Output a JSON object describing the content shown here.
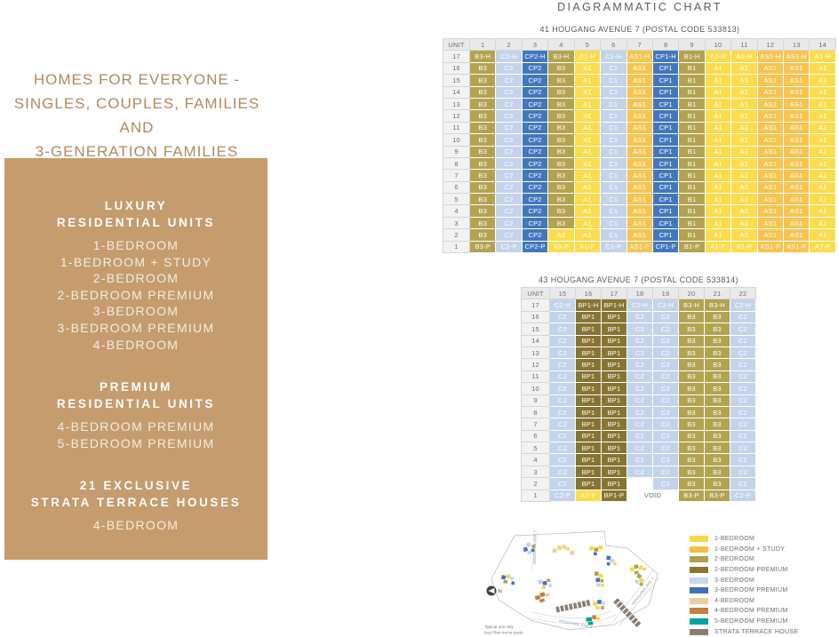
{
  "page": {
    "title": "DIAGRAMMATIC CHART"
  },
  "left_panel": {
    "heading_lines": [
      "HOMES FOR EVERYONE -",
      "SINGLES, COUPLES, FAMILIES AND",
      "3-GENERATION FAMILIES"
    ],
    "box_bg_color": "#C49C6E",
    "heading_color": "#B1895C",
    "sections": [
      {
        "title_lines": [
          "LUXURY",
          "RESIDENTIAL UNITS"
        ],
        "items": [
          "1-BEDROOM",
          "1-BEDROOM + STUDY",
          "2-BEDROOM",
          "2-BEDROOM PREMIUM",
          "3-BEDROOM",
          "3-BEDROOM PREMIUM",
          "4-BEDROOM"
        ]
      },
      {
        "title_lines": [
          "PREMIUM",
          "RESIDENTIAL UNITS"
        ],
        "items": [
          "4-BEDROOM PREMIUM",
          "5-BEDROOM PREMIUM"
        ]
      },
      {
        "title_lines": [
          "21 EXCLUSIVE",
          "STRATA TERRACE HOUSES"
        ],
        "items": [
          "4-BEDROOM"
        ]
      }
    ]
  },
  "unit_type_colors": {
    "A": "#FCDC4C",
    "AS": "#F6C44F",
    "B": "#B3A351",
    "BP": "#877431",
    "C": "#C4D3EC",
    "CP": "#4377BD"
  },
  "blocks": [
    {
      "title": "41 HOUGANG AVENUE 7 (POSTAL CODE 533813)",
      "columns": [
        "UNIT",
        "1",
        "2",
        "3",
        "4",
        "5",
        "6",
        "7",
        "8",
        "9",
        "10",
        "11",
        "12",
        "13",
        "14"
      ],
      "floors": [
        {
          "floor": "17",
          "cells": [
            "B3-H",
            "C2-H",
            "CP2-H",
            "B3-H",
            "A1-H",
            "C1-H",
            "AS1-H",
            "CP1-H",
            "B1-H",
            "A1-H",
            "A1-H",
            "AS1-H",
            "AS1-H",
            "A1-H"
          ]
        },
        {
          "floor": "16",
          "cells": [
            "B3",
            "C2",
            "CP2",
            "B3",
            "A1",
            "C1",
            "AS1",
            "CP1",
            "B1",
            "A1",
            "A1",
            "AS1",
            "AS1",
            "A1"
          ]
        },
        {
          "floor": "15",
          "cells": [
            "B3",
            "C2",
            "CP2",
            "B3",
            "A1",
            "C1",
            "AS1",
            "CP1",
            "B1",
            "A1",
            "A1",
            "AS1",
            "AS1",
            "A1"
          ]
        },
        {
          "floor": "14",
          "cells": [
            "B3",
            "C2",
            "CP2",
            "B3",
            "A1",
            "C1",
            "AS1",
            "CP1",
            "B1",
            "A1",
            "A1",
            "AS1",
            "AS1",
            "A1"
          ]
        },
        {
          "floor": "13",
          "cells": [
            "B3",
            "C2",
            "CP2",
            "B3",
            "A1",
            "C1",
            "AS1",
            "CP1",
            "B1",
            "A1",
            "A1",
            "AS1",
            "AS1",
            "A1"
          ]
        },
        {
          "floor": "12",
          "cells": [
            "B3",
            "C2",
            "CP2",
            "B3",
            "A1",
            "C1",
            "AS1",
            "CP1",
            "B1",
            "A1",
            "A1",
            "AS1",
            "AS1",
            "A1"
          ]
        },
        {
          "floor": "11",
          "cells": [
            "B3",
            "C2",
            "CP2",
            "B3",
            "A1",
            "C1",
            "AS1",
            "CP1",
            "B1",
            "A1",
            "A1",
            "AS1",
            "AS1",
            "A1"
          ]
        },
        {
          "floor": "10",
          "cells": [
            "B3",
            "C2",
            "CP2",
            "B3",
            "A1",
            "C1",
            "AS1",
            "CP1",
            "B1",
            "A1",
            "A1",
            "AS1",
            "AS1",
            "A1"
          ]
        },
        {
          "floor": "9",
          "cells": [
            "B3",
            "C2",
            "CP2",
            "B3",
            "A1",
            "C1",
            "AS1",
            "CP1",
            "B1",
            "A1",
            "A1",
            "AS1",
            "AS1",
            "A1"
          ]
        },
        {
          "floor": "8",
          "cells": [
            "B3",
            "C2",
            "CP2",
            "B3",
            "A1",
            "C1",
            "AS1",
            "CP1",
            "B1",
            "A1",
            "A1",
            "AS1",
            "AS1",
            "A1"
          ]
        },
        {
          "floor": "7",
          "cells": [
            "B3",
            "C2",
            "CP2",
            "B3",
            "A1",
            "C1",
            "AS1",
            "CP1",
            "B1",
            "A1",
            "A1",
            "AS1",
            "AS1",
            "A1"
          ]
        },
        {
          "floor": "6",
          "cells": [
            "B3",
            "C2",
            "CP2",
            "B3",
            "A1",
            "C1",
            "AS1",
            "CP1",
            "B1",
            "A1",
            "A1",
            "AS1",
            "AS1",
            "A1"
          ]
        },
        {
          "floor": "5",
          "cells": [
            "B3",
            "C2",
            "CP2",
            "B3",
            "A1",
            "C1",
            "AS1",
            "CP1",
            "B1",
            "A1",
            "A1",
            "AS1",
            "AS1",
            "A1"
          ]
        },
        {
          "floor": "4",
          "cells": [
            "B3",
            "C2",
            "CP2",
            "B3",
            "A1",
            "C1",
            "AS1",
            "CP1",
            "B1",
            "A1",
            "A1",
            "AS1",
            "AS1",
            "A1"
          ]
        },
        {
          "floor": "3",
          "cells": [
            "B3",
            "C2",
            "CP2",
            "B3",
            "A1",
            "C1",
            "AS1",
            "CP1",
            "B1",
            "A1",
            "A1",
            "AS1",
            "AS1",
            "A1"
          ]
        },
        {
          "floor": "2",
          "cells": [
            "B3",
            "C2",
            "CP2",
            "A2",
            "A1",
            "C1",
            "AS1",
            "CP1",
            "B1",
            "A1",
            "A1",
            "AS1",
            "AS1",
            "A1"
          ]
        },
        {
          "floor": "1",
          "cells": [
            "B3-P",
            "C2-P",
            "CP2-P",
            "A3-P",
            "A1-P",
            "C1-P",
            "AS1-P",
            "CP1-P",
            "B1-P",
            "A1-P",
            "A1-P",
            "AS1-P",
            "AS1-P",
            "A1-P"
          ]
        }
      ]
    },
    {
      "title": "43 HOUGANG AVENUE 7 (POSTAL CODE 533814)",
      "columns": [
        "UNIT",
        "15",
        "16",
        "17",
        "18",
        "19",
        "20",
        "21",
        "22"
      ],
      "floors": [
        {
          "floor": "17",
          "cells": [
            "C2-H",
            "BP1-H",
            "BP1-H",
            "C2-H",
            "C2-H",
            "B3-H",
            "B3-H",
            "C2-H"
          ]
        },
        {
          "floor": "16",
          "cells": [
            "C2",
            "BP1",
            "BP1",
            "C2",
            "C2",
            "B3",
            "B3",
            "C2"
          ]
        },
        {
          "floor": "15",
          "cells": [
            "C2",
            "BP1",
            "BP1",
            "C2",
            "C2",
            "B3",
            "B3",
            "C2"
          ]
        },
        {
          "floor": "14",
          "cells": [
            "C2",
            "BP1",
            "BP1",
            "C2",
            "C2",
            "B3",
            "B3",
            "C2"
          ]
        },
        {
          "floor": "13",
          "cells": [
            "C2",
            "BP1",
            "BP1",
            "C2",
            "C2",
            "B3",
            "B3",
            "C2"
          ]
        },
        {
          "floor": "12",
          "cells": [
            "C2",
            "BP1",
            "BP1",
            "C2",
            "C2",
            "B3",
            "B3",
            "C2"
          ]
        },
        {
          "floor": "11",
          "cells": [
            "C2",
            "BP1",
            "BP1",
            "C2",
            "C2",
            "B3",
            "B3",
            "C2"
          ]
        },
        {
          "floor": "10",
          "cells": [
            "C2",
            "BP1",
            "BP1",
            "C2",
            "C2",
            "B3",
            "B3",
            "C2"
          ]
        },
        {
          "floor": "9",
          "cells": [
            "C2",
            "BP1",
            "BP1",
            "C2",
            "C2",
            "B3",
            "B3",
            "C2"
          ]
        },
        {
          "floor": "8",
          "cells": [
            "C2",
            "BP1",
            "BP1",
            "C2",
            "C2",
            "B3",
            "B3",
            "C2"
          ]
        },
        {
          "floor": "7",
          "cells": [
            "C2",
            "BP1",
            "BP1",
            "C2",
            "C2",
            "B3",
            "B3",
            "C2"
          ]
        },
        {
          "floor": "6",
          "cells": [
            "C2",
            "BP1",
            "BP1",
            "C2",
            "C2",
            "B3",
            "B3",
            "C2"
          ]
        },
        {
          "floor": "5",
          "cells": [
            "C2",
            "BP1",
            "BP1",
            "C2",
            "C2",
            "B3",
            "B3",
            "C2"
          ]
        },
        {
          "floor": "4",
          "cells": [
            "C2",
            "BP1",
            "BP1",
            "C2",
            "C2",
            "B3",
            "B3",
            "C2"
          ]
        },
        {
          "floor": "3",
          "cells": [
            "C2",
            "BP1",
            "BP1",
            "C2",
            "C2",
            "B3",
            "B3",
            "C2"
          ]
        },
        {
          "floor": "2",
          "cells": [
            "C2",
            "BP1",
            "BP1",
            "",
            "C2",
            "B3",
            "B3",
            "C2"
          ]
        },
        {
          "floor": "1",
          "cells": [
            "C2-P",
            "A2-P",
            "BP1-P",
            {
              "text": "VOID",
              "colspan": 2
            },
            "B3-P",
            "B3-P",
            "C2-P"
          ]
        }
      ]
    }
  ],
  "legend": {
    "items": [
      {
        "label": "1-BEDROOM",
        "color": "#F8D74B"
      },
      {
        "label": "1-BEDROOM + STUDY",
        "color": "#F5BE41"
      },
      {
        "label": "2-BEDROOM",
        "color": "#B1A04B"
      },
      {
        "label": "2-BEDROOM PREMIUM",
        "color": "#8A772E"
      },
      {
        "label": "3-BEDROOM",
        "color": "#C6D6F1"
      },
      {
        "label": "3-BEDROOM PREMIUM",
        "color": "#3F72BA"
      },
      {
        "label": "4-BEDROOM",
        "color": "#EDCDA4"
      },
      {
        "label": "4-BEDROOM PREMIUM",
        "color": "#C57F3E"
      },
      {
        "label": "5-BEDROOM PREMIUM",
        "color": "#00A59B"
      },
      {
        "label": "STRATA TERRACE HOUSE",
        "color": "#8C7E71"
      }
    ]
  },
  "key_plan": {
    "north_label": "N",
    "road_labels": [
      "HOUGANG AVE 7",
      "HOUGANG AVE 2",
      "HOUGANG AVE 7"
    ],
    "captions": [
      "Typical unit only",
      "Key Plan not to scale"
    ]
  }
}
